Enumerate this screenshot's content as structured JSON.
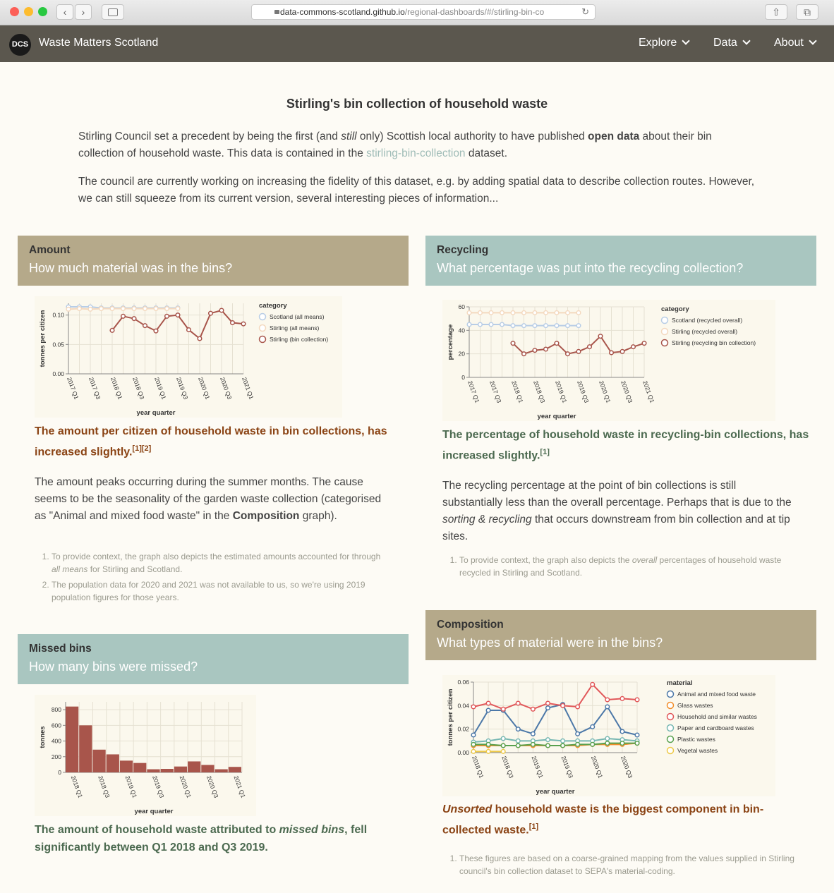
{
  "browser": {
    "url_host": "data-commons-scotland.github.io",
    "url_path": "/regional-dashboards/#/stirling-bin-co"
  },
  "nav": {
    "logo": "DCS",
    "brand": "Waste Matters Scotland",
    "menu": [
      "Explore",
      "Data",
      "About"
    ]
  },
  "page": {
    "title": "Stirling's bin collection of household waste",
    "intro1_a": "Stirling Council set a precedent by being the first (and ",
    "intro1_still": "still",
    "intro1_b": " only) Scottish local authority to have published ",
    "intro1_open": "open data",
    "intro1_c": " about their bin collection of household waste. This data is contained in the ",
    "intro1_link": "stirling-bin-collection",
    "intro1_d": " dataset.",
    "intro2": "The council are currently working on increasing the fidelity of this dataset, e.g. by adding spatial data to describe collection routes. However, we can still squeeze from its current version, several interesting pieces of information..."
  },
  "colors": {
    "scotland": "#b8cde6",
    "stirling_all": "#f4d9bf",
    "bin": "#a8554b",
    "animal": "#4c78a8",
    "glass": "#f28e2b",
    "household": "#e15759",
    "paper": "#76b7b2",
    "plastic": "#59a14f",
    "vegetal": "#edc948",
    "bar": "#a8554b"
  },
  "amount": {
    "heading": "Amount",
    "question": "How much material was in the bins?",
    "finding": "The amount per citizen of household waste in bin collections, has increased slightly.",
    "refs": "[1][2]",
    "para_a": "The amount peaks occurring during the summer months. The cause seems to be the seasonality of the garden waste collection (categorised as \"Animal and mixed food waste\" in the ",
    "para_bold": "Composition",
    "para_b": " graph).",
    "note1_a": "To provide context, the graph also depicts the estimated amounts accounted for through ",
    "note1_em": "all means",
    "note1_b": " for Stirling and Scotland.",
    "note2": "The population data for 2020 and 2021 was not available to us, so we're using 2019 population figures for those years."
  },
  "recycling": {
    "heading": "Recycling",
    "question": "What percentage was put into the recycling collection?",
    "finding": "The percentage of household waste in recycling-bin collections, has increased slightly.",
    "refs": "[1]",
    "para_a": "The recycling percentage at the point of bin collections is still substantially less than the overall percentage. Perhaps that is due to the ",
    "para_em": "sorting & recycling",
    "para_b": " that occurs downstream from bin collection and at tip sites.",
    "note1_a": "To provide context, the graph also depicts the ",
    "note1_em": "overall",
    "note1_b": " percentages of household waste recycled in Stirling and Scotland."
  },
  "missed": {
    "heading": "Missed bins",
    "question": "How many bins were missed?",
    "finding_a": "The amount of household waste attributed to ",
    "finding_em": "missed bins",
    "finding_b": ", fell significantly between Q1 2018 and Q3 2019."
  },
  "composition": {
    "heading": "Composition",
    "question": "What types of material were in the bins?",
    "finding_em": "Unsorted",
    "finding_b": " household waste is the biggest component in bin-collected waste.",
    "refs": "[1]",
    "note1_a": "These figures are based on a coarse-grained mapping from the values supplied in Stirling council's bin collection dataset to SEPA's ",
    "note1_link": "material-coding",
    "note1_b": "."
  },
  "chart_data": [
    {
      "id": "amount",
      "type": "line",
      "ylabel": "tonnes per citizen",
      "xlabel": "year quarter",
      "ylim": [
        0,
        0.12
      ],
      "yticks": [
        0,
        0.05,
        0.1
      ],
      "ytick_labels": [
        "0.00",
        "0.05",
        "0.10"
      ],
      "x_ticks": [
        "2017 Q1",
        "2017 Q3",
        "2018 Q1",
        "2018 Q3",
        "2019 Q1",
        "2019 Q3",
        "2020 Q1",
        "2020 Q3",
        "2021 Q1"
      ],
      "legend_title": "category",
      "legend": "top-right",
      "grid": true,
      "series": [
        {
          "name": "Scotland (all means)",
          "start": 0,
          "values": [
            0.114,
            0.114,
            0.114,
            0.112,
            0.112,
            0.112,
            0.112,
            0.112,
            0.112,
            0.112,
            0.112
          ]
        },
        {
          "name": "Stirling (all means)",
          "start": 0,
          "values": [
            0.11,
            0.111,
            0.11,
            0.111,
            0.111,
            0.111,
            0.111,
            0.111,
            0.111,
            0.111,
            0.111
          ]
        },
        {
          "name": "Stirling (bin collection)",
          "start": 4,
          "values": [
            0.074,
            0.098,
            0.094,
            0.082,
            0.073,
            0.098,
            0.1,
            0.075,
            0.06,
            0.103,
            0.108,
            0.087,
            0.085
          ]
        }
      ]
    },
    {
      "id": "recycling",
      "type": "line",
      "ylabel": "percentage",
      "xlabel": "year quarter",
      "ylim": [
        0,
        60
      ],
      "yticks": [
        0,
        20,
        40,
        60
      ],
      "ytick_labels": [
        "0",
        "20",
        "40",
        "60"
      ],
      "x_ticks": [
        "2017 Q1",
        "2017 Q3",
        "2018 Q1",
        "2018 Q3",
        "2019 Q1",
        "2019 Q3",
        "2020 Q1",
        "2020 Q3",
        "2021 Q1"
      ],
      "legend_title": "category",
      "legend": "top-right",
      "grid": true,
      "series": [
        {
          "name": "Scotland (recycled overall)",
          "start": 0,
          "values": [
            45,
            45,
            45,
            45,
            44,
            44,
            44,
            44,
            44,
            44,
            44
          ]
        },
        {
          "name": "Stirling (recycled overall)",
          "start": 0,
          "values": [
            55,
            55,
            55,
            55,
            55,
            55,
            55,
            55,
            55,
            55,
            55
          ]
        },
        {
          "name": "Stirling (recycling bin collection)",
          "start": 4,
          "values": [
            29,
            20,
            23,
            24,
            29,
            20,
            22,
            26,
            35,
            21,
            22,
            26,
            29
          ]
        }
      ]
    },
    {
      "id": "missed",
      "type": "bar",
      "ylabel": "tonnes",
      "xlabel": "year quarter",
      "ylim": [
        0,
        900
      ],
      "yticks": [
        0,
        200,
        400,
        600,
        800
      ],
      "ytick_labels": [
        "0",
        "200",
        "400",
        "600",
        "800"
      ],
      "x_ticks": [
        "2018 Q1",
        "2018 Q3",
        "2019 Q1",
        "2019 Q3",
        "2020 Q1",
        "2020 Q3",
        "2021 Q1"
      ],
      "grid": true,
      "values": [
        840,
        600,
        290,
        230,
        150,
        120,
        40,
        45,
        75,
        140,
        95,
        40,
        70
      ]
    },
    {
      "id": "composition",
      "type": "line",
      "ylabel": "tonnes per citizen",
      "xlabel": "year quarter",
      "ylim": [
        0,
        0.06
      ],
      "yticks": [
        0,
        0.02,
        0.04,
        0.06
      ],
      "ytick_labels": [
        "0.00",
        "0.02",
        "0.04",
        "0.06"
      ],
      "x_ticks": [
        "2018 Q1",
        "2018 Q3",
        "2019 Q1",
        "2019 Q3",
        "2020 Q1",
        "2020 Q3"
      ],
      "legend_title": "material",
      "legend": "top-right",
      "grid": true,
      "series": [
        {
          "name": "Animal and mixed food waste",
          "values": [
            0.015,
            0.036,
            0.036,
            0.02,
            0.016,
            0.038,
            0.041,
            0.016,
            0.022,
            0.039,
            0.018,
            0.015
          ]
        },
        {
          "name": "Glass wastes",
          "values": [
            0.006,
            0.006,
            0.006,
            0.006,
            0.006,
            0.006,
            0.006,
            0.006,
            0.007,
            0.007,
            0.007,
            0.008
          ]
        },
        {
          "name": "Household and similar wastes",
          "values": [
            0.039,
            0.042,
            0.037,
            0.042,
            0.037,
            0.042,
            0.04,
            0.039,
            0.058,
            0.045,
            0.046,
            0.045
          ]
        },
        {
          "name": "Paper and cardboard wastes",
          "values": [
            0.009,
            0.01,
            0.012,
            0.01,
            0.01,
            0.011,
            0.01,
            0.01,
            0.01,
            0.012,
            0.011,
            0.01
          ]
        },
        {
          "name": "Plastic wastes",
          "values": [
            0.007,
            0.007,
            0.006,
            0.006,
            0.007,
            0.006,
            0.006,
            0.007,
            0.007,
            0.008,
            0.008,
            0.008
          ]
        },
        {
          "name": "Vegetal wastes",
          "values": [
            0.001,
            0.001,
            0.001
          ]
        }
      ]
    }
  ]
}
